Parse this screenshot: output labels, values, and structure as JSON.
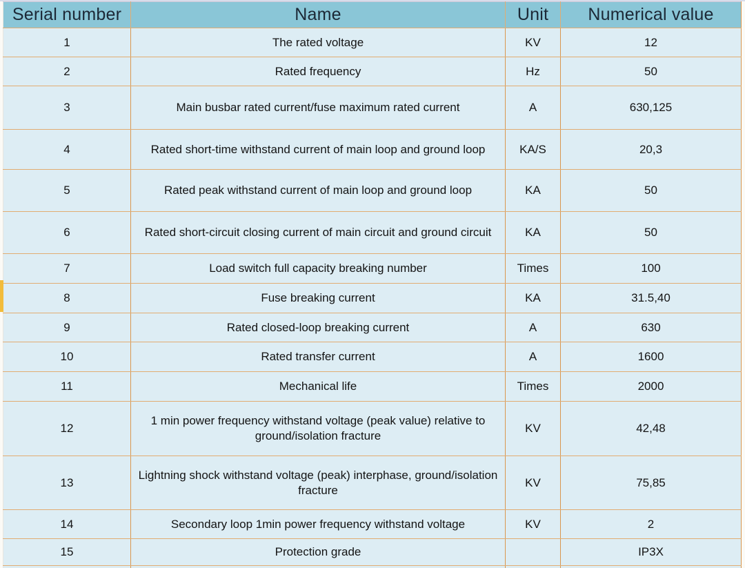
{
  "table": {
    "columns": [
      "Serial number",
      "Name",
      "Unit",
      "Numerical value"
    ],
    "rows": [
      {
        "serial": "1",
        "name": "The rated voltage",
        "unit": "KV",
        "value": "12"
      },
      {
        "serial": "2",
        "name": "Rated frequency",
        "unit": "Hz",
        "value": "50"
      },
      {
        "serial": "3",
        "name": "Main busbar rated current/fuse maximum rated current",
        "unit": "A",
        "value": "630,125"
      },
      {
        "serial": "4",
        "name": "Rated short-time withstand current of main loop and ground loop",
        "unit": "KA/S",
        "value": "20,3"
      },
      {
        "serial": "5",
        "name": "Rated peak withstand current of main loop and ground loop",
        "unit": "KA",
        "value": "50"
      },
      {
        "serial": "6",
        "name": "Rated short-circuit closing current of main circuit and ground circuit",
        "unit": "KA",
        "value": "50"
      },
      {
        "serial": "7",
        "name": "Load switch full capacity breaking number",
        "unit": "Times",
        "value": "100"
      },
      {
        "serial": "8",
        "name": "Fuse breaking current",
        "unit": "KA",
        "value": "31.5,40"
      },
      {
        "serial": "9",
        "name": "Rated closed-loop breaking current",
        "unit": "A",
        "value": "630"
      },
      {
        "serial": "10",
        "name": "Rated transfer current",
        "unit": "A",
        "value": "1600"
      },
      {
        "serial": "11",
        "name": "Mechanical life",
        "unit": "Times",
        "value": "2000"
      },
      {
        "serial": "12",
        "name": "1 min power frequency withstand voltage (peak value) relative to ground/isolation fracture",
        "unit": "KV",
        "value": "42,48"
      },
      {
        "serial": "13",
        "name": "Lightning shock withstand voltage (peak) interphase, ground/isolation fracture",
        "unit": "KV",
        "value": "75,85"
      },
      {
        "serial": "14",
        "name": "Secondary loop 1min power frequency withstand voltage",
        "unit": "KV",
        "value": "2"
      },
      {
        "serial": "15",
        "name": "Protection grade",
        "unit": "",
        "value": "IP3X"
      }
    ]
  },
  "colors": {
    "header_bg": "#8ac6d7",
    "row_bg": "#ddedf4",
    "border_vertical": "#d9964e",
    "border_horizontal": "#e2ac71",
    "header_text": "#1c2836",
    "body_text": "#141414",
    "left_highlight": "#f2bc3b"
  }
}
